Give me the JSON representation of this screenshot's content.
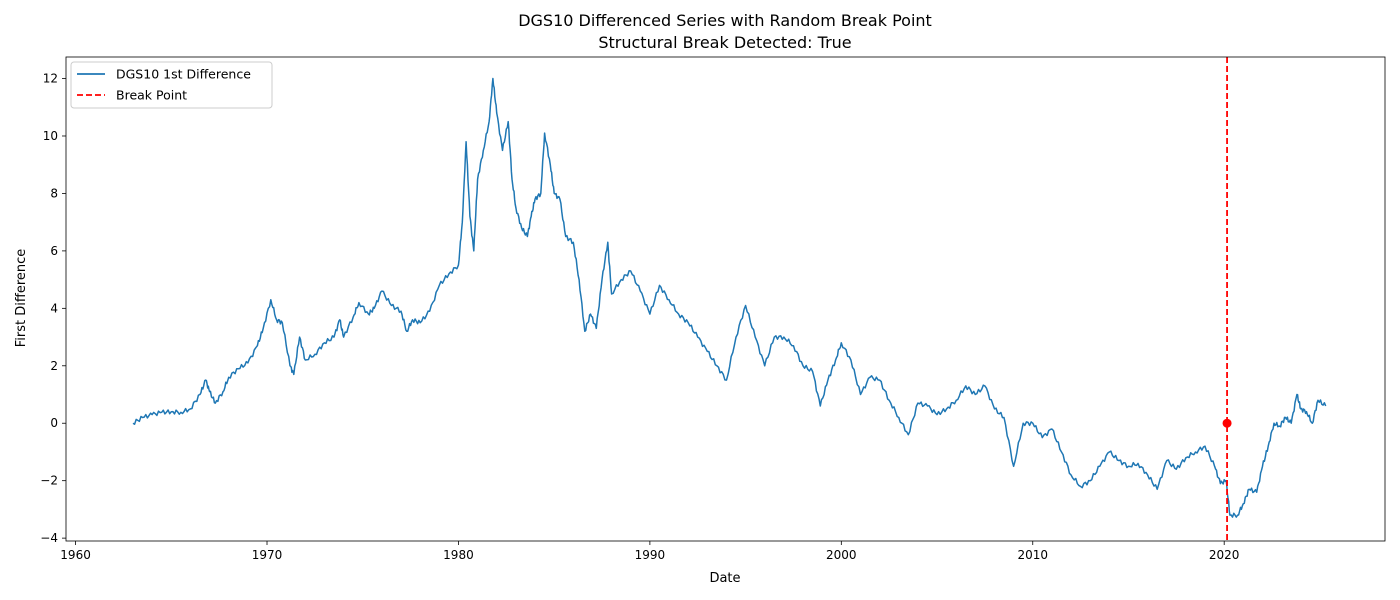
{
  "chart_data": {
    "type": "line",
    "title": "DGS10 Differenced Series with Random Break Point",
    "subtitle": "Structural Break Detected: True",
    "xlabel": "Date",
    "ylabel": "First Difference",
    "xlim": [
      1959.5,
      2028.4
    ],
    "ylim": [
      -4.1,
      12.75
    ],
    "x_ticks": [
      1960,
      1970,
      1980,
      1990,
      2000,
      2010,
      2020
    ],
    "y_ticks": [
      -4,
      -2,
      0,
      2,
      4,
      6,
      8,
      10,
      12
    ],
    "grid": false,
    "legend_position": "upper-left",
    "series": [
      {
        "name": "DGS10 1st Difference",
        "color": "#1f77b4",
        "style": "solid",
        "points": [
          [
            1963.0,
            0.0
          ],
          [
            1963.5,
            0.2
          ],
          [
            1964.0,
            0.3
          ],
          [
            1964.5,
            0.38
          ],
          [
            1965.0,
            0.4
          ],
          [
            1965.5,
            0.38
          ],
          [
            1966.0,
            0.5
          ],
          [
            1966.5,
            1.0
          ],
          [
            1966.8,
            1.5
          ],
          [
            1967.0,
            1.1
          ],
          [
            1967.3,
            0.7
          ],
          [
            1967.7,
            1.1
          ],
          [
            1968.0,
            1.6
          ],
          [
            1968.5,
            1.9
          ],
          [
            1969.0,
            2.1
          ],
          [
            1969.5,
            2.7
          ],
          [
            1969.8,
            3.3
          ],
          [
            1970.2,
            4.3
          ],
          [
            1970.5,
            3.6
          ],
          [
            1970.8,
            3.5
          ],
          [
            1971.2,
            2.0
          ],
          [
            1971.4,
            1.7
          ],
          [
            1971.7,
            3.0
          ],
          [
            1972.0,
            2.2
          ],
          [
            1972.5,
            2.4
          ],
          [
            1973.0,
            2.8
          ],
          [
            1973.5,
            3.0
          ],
          [
            1973.8,
            3.6
          ],
          [
            1974.0,
            3.0
          ],
          [
            1974.5,
            3.7
          ],
          [
            1974.8,
            4.2
          ],
          [
            1975.3,
            3.8
          ],
          [
            1975.6,
            4.0
          ],
          [
            1976.0,
            4.6
          ],
          [
            1976.5,
            4.1
          ],
          [
            1977.0,
            3.9
          ],
          [
            1977.3,
            3.2
          ],
          [
            1977.6,
            3.6
          ],
          [
            1978.0,
            3.5
          ],
          [
            1978.5,
            3.9
          ],
          [
            1979.0,
            4.8
          ],
          [
            1979.5,
            5.2
          ],
          [
            1980.0,
            5.5
          ],
          [
            1980.2,
            7.0
          ],
          [
            1980.4,
            9.8
          ],
          [
            1980.6,
            7.2
          ],
          [
            1980.8,
            6.0
          ],
          [
            1981.0,
            8.5
          ],
          [
            1981.3,
            9.5
          ],
          [
            1981.6,
            10.5
          ],
          [
            1981.8,
            12.0
          ],
          [
            1982.0,
            10.8
          ],
          [
            1982.3,
            9.5
          ],
          [
            1982.6,
            10.5
          ],
          [
            1982.8,
            8.5
          ],
          [
            1983.0,
            7.5
          ],
          [
            1983.3,
            6.8
          ],
          [
            1983.6,
            6.5
          ],
          [
            1983.8,
            7.2
          ],
          [
            1984.0,
            7.8
          ],
          [
            1984.3,
            8.0
          ],
          [
            1984.5,
            10.1
          ],
          [
            1984.8,
            9.0
          ],
          [
            1985.0,
            8.0
          ],
          [
            1985.3,
            7.8
          ],
          [
            1985.6,
            6.5
          ],
          [
            1986.0,
            6.3
          ],
          [
            1986.3,
            5.0
          ],
          [
            1986.6,
            3.2
          ],
          [
            1986.9,
            3.8
          ],
          [
            1987.2,
            3.3
          ],
          [
            1987.5,
            5.0
          ],
          [
            1987.8,
            6.3
          ],
          [
            1988.0,
            4.5
          ],
          [
            1988.5,
            5.0
          ],
          [
            1989.0,
            5.3
          ],
          [
            1989.5,
            4.6
          ],
          [
            1990.0,
            3.8
          ],
          [
            1990.5,
            4.8
          ],
          [
            1991.0,
            4.3
          ],
          [
            1991.5,
            3.8
          ],
          [
            1992.0,
            3.5
          ],
          [
            1992.5,
            3.0
          ],
          [
            1993.0,
            2.5
          ],
          [
            1993.5,
            2.0
          ],
          [
            1994.0,
            1.5
          ],
          [
            1994.5,
            3.0
          ],
          [
            1995.0,
            4.1
          ],
          [
            1995.5,
            3.0
          ],
          [
            1996.0,
            2.0
          ],
          [
            1996.5,
            3.0
          ],
          [
            1997.0,
            3.0
          ],
          [
            1997.5,
            2.7
          ],
          [
            1998.0,
            2.0
          ],
          [
            1998.5,
            1.8
          ],
          [
            1998.9,
            0.6
          ],
          [
            1999.3,
            1.5
          ],
          [
            1999.7,
            2.2
          ],
          [
            2000.0,
            2.8
          ],
          [
            2000.5,
            2.2
          ],
          [
            2001.0,
            1.0
          ],
          [
            2001.5,
            1.6
          ],
          [
            2002.0,
            1.5
          ],
          [
            2002.5,
            0.8
          ],
          [
            2003.0,
            0.2
          ],
          [
            2003.5,
            -0.4
          ],
          [
            2004.0,
            0.7
          ],
          [
            2004.5,
            0.6
          ],
          [
            2005.0,
            0.3
          ],
          [
            2005.5,
            0.5
          ],
          [
            2006.0,
            0.8
          ],
          [
            2006.5,
            1.3
          ],
          [
            2007.0,
            1.0
          ],
          [
            2007.5,
            1.3
          ],
          [
            2008.0,
            0.5
          ],
          [
            2008.5,
            0.2
          ],
          [
            2009.0,
            -1.5
          ],
          [
            2009.5,
            0.0
          ],
          [
            2010.0,
            0.0
          ],
          [
            2010.5,
            -0.5
          ],
          [
            2011.0,
            -0.2
          ],
          [
            2011.5,
            -1.0
          ],
          [
            2012.0,
            -1.8
          ],
          [
            2012.5,
            -2.2
          ],
          [
            2013.0,
            -2.0
          ],
          [
            2013.5,
            -1.5
          ],
          [
            2014.0,
            -1.0
          ],
          [
            2014.5,
            -1.3
          ],
          [
            2015.0,
            -1.5
          ],
          [
            2015.5,
            -1.4
          ],
          [
            2016.0,
            -1.8
          ],
          [
            2016.5,
            -2.3
          ],
          [
            2017.0,
            -1.3
          ],
          [
            2017.5,
            -1.6
          ],
          [
            2018.0,
            -1.2
          ],
          [
            2018.5,
            -1.0
          ],
          [
            2019.0,
            -0.8
          ],
          [
            2019.5,
            -1.5
          ],
          [
            2019.8,
            -2.1
          ],
          [
            2020.1,
            -2.0
          ],
          [
            2020.3,
            -3.2
          ],
          [
            2020.7,
            -3.2
          ],
          [
            2021.0,
            -2.8
          ],
          [
            2021.3,
            -2.3
          ],
          [
            2021.7,
            -2.4
          ],
          [
            2022.0,
            -1.5
          ],
          [
            2022.3,
            -0.8
          ],
          [
            2022.6,
            0.0
          ],
          [
            2022.9,
            -0.1
          ],
          [
            2023.2,
            0.2
          ],
          [
            2023.5,
            0.0
          ],
          [
            2023.8,
            1.0
          ],
          [
            2024.0,
            0.5
          ],
          [
            2024.3,
            0.4
          ],
          [
            2024.6,
            0.0
          ],
          [
            2024.9,
            0.8
          ],
          [
            2025.3,
            0.6
          ]
        ]
      },
      {
        "name": "Break Point",
        "color": "#ff0000",
        "style": "dashed",
        "x_vertical": 2020.15
      }
    ],
    "break_marker": {
      "x": 2020.15,
      "y": 0.0,
      "color": "#ff0000"
    }
  }
}
